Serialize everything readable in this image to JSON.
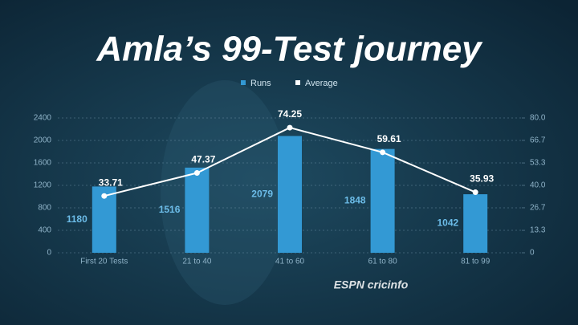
{
  "chart_data": {
    "type": "bar_line",
    "title": "Amla’s 99-Test journey",
    "categories": [
      "First 20 Tests",
      "21 to 40",
      "41 to 60",
      "61 to 80",
      "81 to 99"
    ],
    "series": [
      {
        "name": "Runs",
        "color": "#3399d4",
        "values": [
          1180,
          1516,
          2079,
          1848,
          1042
        ]
      },
      {
        "name": "Average",
        "color": "#ffffff",
        "axis": "y2",
        "values": [
          33.71,
          47.37,
          74.25,
          59.61,
          35.93
        ]
      }
    ],
    "ylim": [
      0,
      2400
    ],
    "yticks": [
      0,
      400,
      800,
      1200,
      1600,
      2000,
      2400
    ],
    "y2lim": [
      0,
      80
    ],
    "y2ticks": [
      0,
      13.3,
      26.7,
      {
        "value": 40,
        "label": "40.0"
      },
      53.3,
      66.7,
      {
        "value": 80,
        "label": "80.0"
      }
    ],
    "grid": true,
    "legend": "top",
    "logo": "ESPN cricinfo"
  }
}
